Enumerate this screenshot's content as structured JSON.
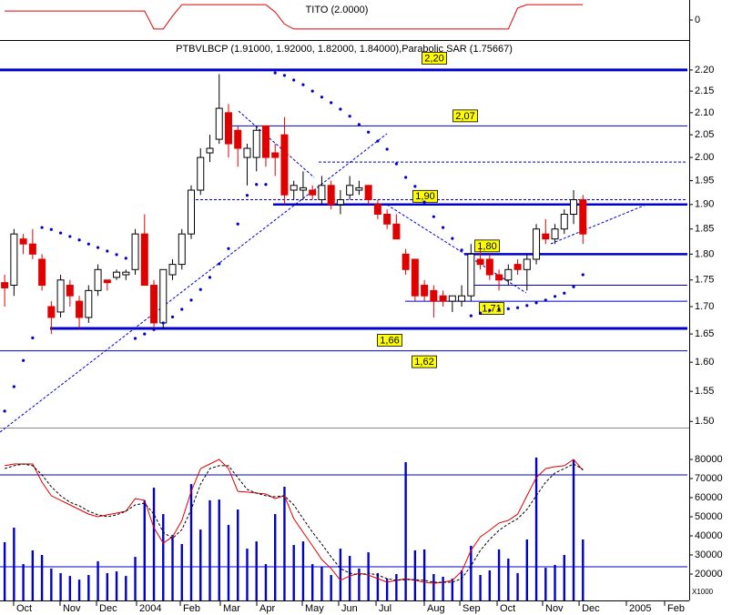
{
  "chart_data": [
    {
      "type": "line",
      "title": "TITO (2.0000)",
      "color": "#e00000",
      "ylim": [
        -1,
        1
      ],
      "yticks": [
        0
      ],
      "values": [
        0.45,
        0.45,
        0.45,
        0.45,
        0.45,
        0.45,
        0.45,
        0.45,
        0.45,
        0.45,
        0.45,
        0.45,
        0.45,
        0.45,
        0.45,
        0.45,
        -0.45,
        -0.45,
        0.2,
        0.77,
        0.77,
        0.77,
        0.77,
        0.77,
        0.77,
        0.77,
        0.77,
        0.77,
        0.77,
        0.4,
        -0.2,
        -0.45,
        -0.45,
        -0.45,
        -0.45,
        -0.45,
        -0.45,
        -0.45,
        -0.45,
        -0.45,
        -0.45,
        -0.45,
        -0.45,
        -0.45,
        -0.45,
        -0.45,
        -0.45,
        -0.45,
        -0.45,
        -0.45,
        -0.45,
        -0.45,
        -0.45,
        -0.45,
        -0.45,
        0.6,
        0.77,
        0.77,
        0.77,
        0.77,
        0.77,
        0.77,
        0.77
      ]
    },
    {
      "type": "candlestick",
      "title": "PTBVLBCP (1.91000, 1.92000, 1.82000, 1.84000),Parabolic SAR (1.75667)",
      "log_scale": true,
      "ylim": [
        1.49,
        2.273
      ],
      "up_color": "#ffffff",
      "down_color": "#e00000",
      "yticks": [
        {
          "value": 2.2,
          "label": "2.20"
        },
        2.15,
        {
          "value": 2.1,
          "label": "2.10"
        },
        2.05,
        {
          "value": 2.0,
          "label": "2.00"
        },
        1.95,
        {
          "value": 1.9,
          "label": "1.90"
        },
        1.85,
        {
          "value": 1.8,
          "label": "1.80"
        },
        1.75,
        {
          "value": 1.7,
          "label": "1.70"
        },
        1.65,
        {
          "value": 1.6,
          "label": "1.60"
        },
        1.55,
        {
          "value": 1.5,
          "label": "1.50"
        }
      ],
      "open": [
        1.745,
        1.74,
        1.83,
        1.82,
        1.79,
        1.7,
        1.69,
        1.74,
        1.71,
        1.68,
        1.73,
        1.75,
        1.755,
        1.76,
        1.77,
        1.84,
        1.74,
        1.67,
        1.76,
        1.78,
        1.84,
        1.93,
        2.01,
        2.04,
        2.1,
        2.06,
        2.0,
        2.0,
        2.07,
        2.01,
        2.05,
        1.93,
        1.93,
        1.93,
        1.91,
        1.94,
        1.9,
        1.92,
        1.93,
        1.94,
        1.9,
        1.88,
        1.86,
        1.8,
        1.79,
        1.74,
        1.73,
        1.72,
        1.71,
        1.71,
        1.72,
        1.79,
        1.79,
        1.76,
        1.75,
        1.78,
        1.77,
        1.79,
        1.84,
        1.83,
        1.85,
        1.88,
        1.91
      ],
      "high": [
        1.76,
        1.85,
        1.84,
        1.85,
        1.8,
        1.71,
        1.76,
        1.75,
        1.72,
        1.74,
        1.78,
        1.75,
        1.77,
        1.77,
        1.85,
        1.88,
        1.75,
        1.77,
        1.79,
        1.85,
        1.94,
        2.02,
        2.05,
        2.19,
        2.12,
        2.07,
        2.03,
        2.07,
        2.07,
        2.03,
        2.09,
        1.95,
        1.97,
        1.94,
        1.96,
        1.95,
        1.93,
        1.96,
        1.95,
        1.94,
        1.91,
        1.89,
        1.88,
        1.81,
        1.79,
        1.75,
        1.74,
        1.73,
        1.72,
        1.74,
        1.82,
        1.81,
        1.8,
        1.77,
        1.78,
        1.79,
        1.8,
        1.86,
        1.87,
        1.86,
        1.89,
        1.93,
        1.92
      ],
      "low": [
        1.7,
        1.72,
        1.8,
        1.79,
        1.73,
        1.65,
        1.68,
        1.7,
        1.66,
        1.67,
        1.72,
        1.73,
        1.75,
        1.75,
        1.76,
        1.74,
        1.66,
        1.66,
        1.75,
        1.77,
        1.83,
        1.92,
        1.99,
        2.03,
        2.0,
        1.98,
        1.94,
        1.97,
        1.98,
        1.96,
        1.9,
        1.91,
        1.91,
        1.91,
        1.9,
        1.89,
        1.88,
        1.91,
        1.92,
        1.9,
        1.87,
        1.85,
        1.83,
        1.76,
        1.71,
        1.71,
        1.68,
        1.7,
        1.69,
        1.7,
        1.71,
        1.77,
        1.75,
        1.73,
        1.74,
        1.76,
        1.73,
        1.78,
        1.82,
        1.82,
        1.84,
        1.86,
        1.82
      ],
      "close": [
        1.735,
        1.84,
        1.82,
        1.8,
        1.74,
        1.68,
        1.75,
        1.72,
        1.68,
        1.73,
        1.77,
        1.745,
        1.765,
        1.765,
        1.84,
        1.74,
        1.67,
        1.77,
        1.78,
        1.84,
        1.93,
        2.0,
        2.02,
        2.11,
        2.03,
        2.02,
        2.02,
        2.06,
        2.0,
        2.0,
        1.92,
        1.94,
        1.935,
        1.92,
        1.94,
        1.9,
        1.91,
        1.94,
        1.935,
        1.91,
        1.88,
        1.86,
        1.83,
        1.77,
        1.72,
        1.72,
        1.71,
        1.71,
        1.72,
        1.72,
        1.8,
        1.78,
        1.76,
        1.75,
        1.77,
        1.77,
        1.79,
        1.85,
        1.83,
        1.85,
        1.88,
        1.91,
        1.84
      ],
      "sar": {
        "color": "#0000cc",
        "values": [
          1.517,
          1.558,
          1.603,
          1.643,
          1.853,
          1.849,
          1.842,
          1.835,
          1.828,
          1.82,
          1.813,
          1.806,
          1.799,
          1.792,
          1.642,
          1.65,
          1.658,
          1.67,
          1.681,
          1.695,
          1.712,
          1.732,
          1.755,
          1.781,
          1.811,
          1.86,
          1.919,
          1.942,
          1.942,
          2.193,
          2.187,
          2.176,
          2.165,
          2.15,
          2.136,
          2.123,
          2.108,
          2.092,
          2.073,
          2.056,
          2.036,
          2.018,
          1.986,
          1.957,
          1.938,
          1.905,
          1.875,
          1.853,
          1.831,
          1.808,
          1.683,
          1.688,
          1.693,
          1.695,
          1.696,
          1.698,
          1.702,
          1.707,
          1.712,
          1.719,
          1.725,
          1.737,
          1.76
        ]
      },
      "levels": [
        {
          "value": 2.2,
          "label": "2,20"
        },
        {
          "value": 2.07,
          "label": "2,07"
        },
        {
          "value": 1.9,
          "label": "1,90"
        },
        {
          "value": 1.8,
          "label": "1,80"
        },
        {
          "value": 1.71,
          "label": "1,71"
        },
        {
          "value": 1.66,
          "label": "1,66"
        },
        {
          "value": 1.62,
          "label": "1,62"
        }
      ],
      "unlabeled_levels": [
        1.99,
        1.91,
        1.74
      ]
    },
    {
      "type": "bar",
      "color": "#0000cc",
      "ylim": [
        6190,
        96670
      ],
      "yticks": [
        20000,
        30000,
        40000,
        50000,
        60000,
        70000,
        80000
      ],
      "unit_label": "X1000",
      "values": [
        36700,
        44300,
        25200,
        32400,
        30000,
        22900,
        20500,
        19000,
        17100,
        19500,
        26700,
        20500,
        21400,
        19000,
        29000,
        58600,
        65200,
        51400,
        40500,
        35700,
        67100,
        43300,
        58600,
        59000,
        45700,
        53800,
        33300,
        37100,
        25200,
        51400,
        65700,
        35200,
        37100,
        25200,
        23800,
        19500,
        33300,
        29500,
        22900,
        31400,
        20500,
        17600,
        20000,
        78600,
        32400,
        32900,
        20000,
        18600,
        17600,
        21900,
        34800,
        19500,
        21900,
        32900,
        28100,
        20500,
        38100,
        81000,
        23300,
        24800,
        30000,
        80000,
        38100
      ],
      "overlays": [
        {
          "color": "#e00000",
          "dashed": false,
          "values": [
            76700,
            77600,
            77600,
            77600,
            68100,
            61000,
            58600,
            56200,
            53800,
            51400,
            50000,
            51000,
            51900,
            52900,
            59500,
            58600,
            44300,
            36200,
            39500,
            48100,
            63300,
            75200,
            77600,
            80000,
            75200,
            63300,
            62900,
            62400,
            61900,
            59500,
            61000,
            49000,
            41900,
            34800,
            27600,
            22900,
            16700,
            19000,
            20500,
            19500,
            17600,
            15700,
            16700,
            17600,
            16700,
            15700,
            15200,
            15700,
            16700,
            21400,
            32400,
            39500,
            42900,
            46700,
            48100,
            51400,
            61000,
            70500,
            75200,
            76200,
            76700,
            80000,
            74300
          ]
        },
        {
          "color": "#000000",
          "dashed": true,
          "values": [
            75200,
            76700,
            77600,
            76700,
            71900,
            65700,
            61000,
            57600,
            55700,
            52900,
            51000,
            50000,
            51000,
            52900,
            56200,
            57100,
            51400,
            41900,
            38600,
            43300,
            53800,
            67100,
            75200,
            76700,
            76700,
            70500,
            64300,
            62400,
            61000,
            60500,
            61000,
            56200,
            49000,
            41900,
            35700,
            29000,
            22900,
            20500,
            19500,
            20500,
            19500,
            17600,
            16700,
            17100,
            17100,
            16700,
            15700,
            15700,
            15700,
            17600,
            24300,
            32400,
            38100,
            42900,
            46200,
            49000,
            53800,
            61000,
            68100,
            72900,
            75200,
            77600,
            74800
          ]
        }
      ],
      "levels": [
        71900,
        23800
      ],
      "xlim": [
        -0.5,
        73.2
      ],
      "xticks": [
        {
          "value": 0.96,
          "label": "Oct"
        },
        {
          "value": 5.94,
          "label": "Nov"
        },
        {
          "value": 9.85,
          "label": "Dec"
        },
        {
          "value": 14.14,
          "label": "2004"
        },
        {
          "value": 18.83,
          "label": "Feb"
        },
        {
          "value": 23.12,
          "label": "Mar"
        },
        {
          "value": 27.03,
          "label": "Apr"
        },
        {
          "value": 31.91,
          "label": "May"
        },
        {
          "value": 35.81,
          "label": "Jun"
        },
        {
          "value": 39.82,
          "label": "Jul"
        },
        {
          "value": 44.99,
          "label": "Aug"
        },
        {
          "value": 48.8,
          "label": "Sep"
        },
        {
          "value": 52.8,
          "label": "Oct"
        },
        {
          "value": 57.68,
          "label": "Nov"
        },
        {
          "value": 61.59,
          "label": "Dec"
        },
        {
          "value": 66.66,
          "label": "2005"
        },
        {
          "value": 70.76,
          "label": "Feb"
        }
      ]
    }
  ]
}
